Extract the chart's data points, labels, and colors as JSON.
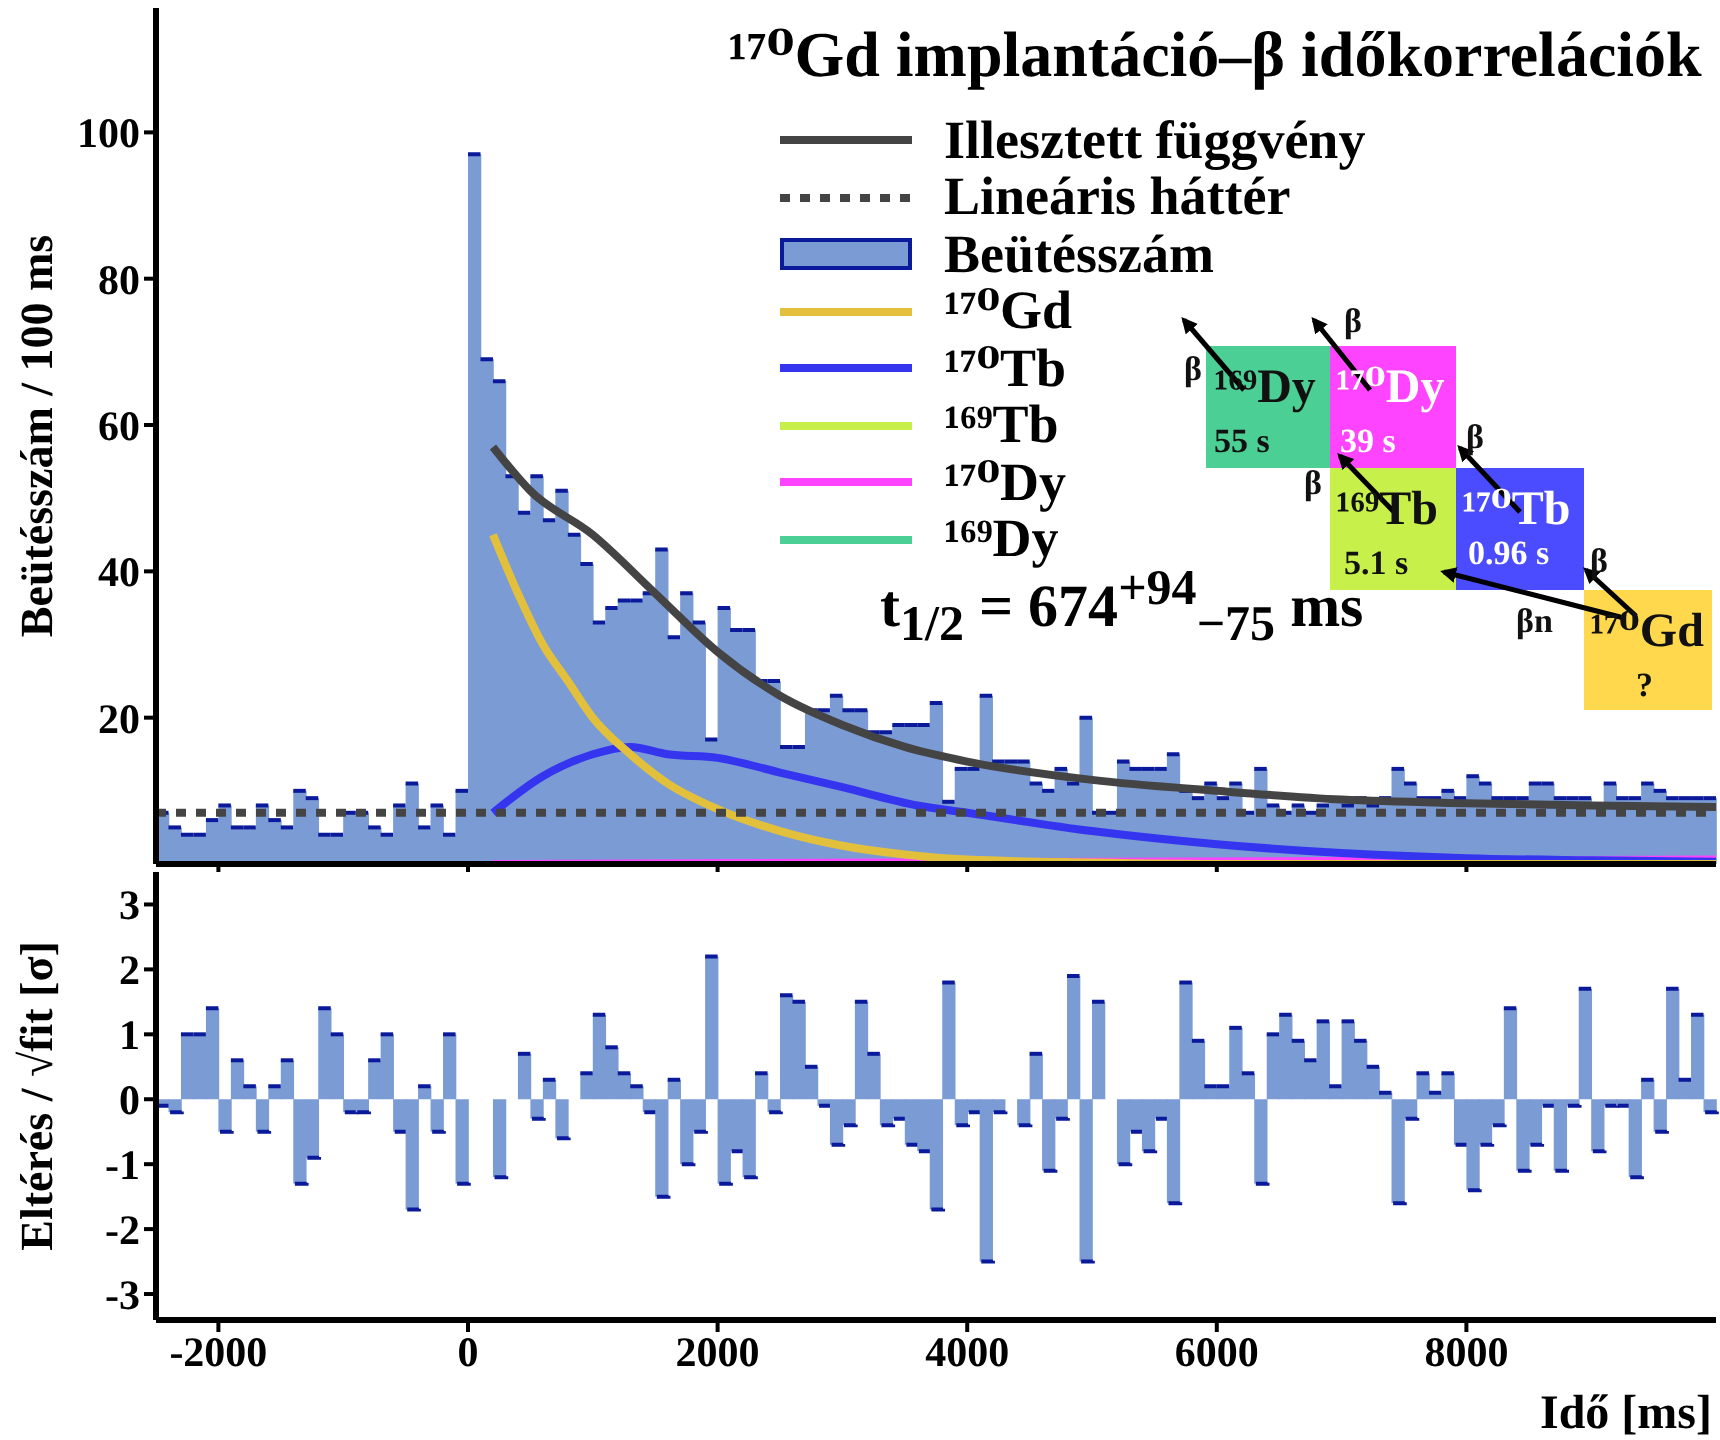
{
  "chart_data": [
    {
      "type": "histogram",
      "legend_title": "¹⁷⁰Gd implantáció–β időkorrelációk",
      "ylabel": "Beütésszám / 100 ms",
      "bins": [
        -2500,
        -2400,
        -2300,
        -2200,
        -2100,
        -2000,
        -1900,
        -1800,
        -1700,
        -1600,
        -1500,
        -1400,
        -1300,
        -1200,
        -1100,
        -1000,
        -900,
        -800,
        -700,
        -600,
        -500,
        -400,
        -300,
        -200,
        -100,
        0,
        100,
        200,
        300,
        400,
        500,
        600,
        700,
        800,
        900,
        1000,
        1100,
        1200,
        1300,
        1400,
        1500,
        1600,
        1700,
        1800,
        1900,
        2000,
        2100,
        2200,
        2300,
        2400,
        2500,
        2600,
        2700,
        2800,
        2900,
        3000,
        3100,
        3200,
        3300,
        3400,
        3500,
        3600,
        3700,
        3800,
        3900,
        4000,
        4100,
        4200,
        4300,
        4400,
        4500,
        4600,
        4700,
        4800,
        4900,
        5000,
        5100,
        5200,
        5300,
        5400,
        5500,
        5600,
        5700,
        5800,
        5900,
        6000,
        6100,
        6200,
        6300,
        6400,
        6500,
        6600,
        6700,
        6800,
        6900,
        7000,
        7100,
        7200,
        7300,
        7400,
        7500,
        7600,
        7700,
        7800,
        7900,
        8000,
        8100,
        8200,
        8300,
        8400,
        8500,
        8600,
        8700,
        8800,
        8900,
        9000,
        9100,
        9200,
        9300,
        9400,
        9500,
        9600,
        9700,
        9800,
        9900,
        10000
      ],
      "xlim": [
        -2500,
        10000
      ],
      "xticks": [
        -2000,
        0,
        2000,
        4000,
        6000,
        8000
      ],
      "ylim": [
        0,
        117
      ],
      "yticks": [
        20,
        40,
        60,
        80,
        100
      ],
      "tick_labels": "y",
      "legend": "top right",
      "grid": false,
      "series": [
        {
          "name": "Illesztett függvény",
          "type": "line",
          "color": "#444444",
          "x": [
            200,
            500,
            1000,
            1500,
            2000,
            2500,
            3000,
            3500,
            4000,
            5000,
            6000,
            7000,
            8000,
            9000,
            10000
          ],
          "values": [
            57,
            51,
            45,
            37,
            29,
            23,
            19,
            16,
            14,
            11.5,
            10,
            8.8,
            8.3,
            8,
            7.8
          ]
        },
        {
          "name": "Lineáris háttér",
          "type": "line",
          "color": "#444444",
          "line_style": "dotted",
          "x": [
            -2500,
            10000
          ],
          "values": [
            7,
            7
          ]
        },
        {
          "name": "Beütésszám",
          "type": "histogram",
          "color": "#7b9bd4",
          "values": [
            7,
            5,
            4,
            4,
            6,
            8,
            5,
            5,
            8,
            6,
            5,
            10,
            9,
            4,
            4,
            7,
            7,
            5,
            4,
            8,
            11,
            5,
            8,
            4,
            10,
            97,
            69,
            66,
            53,
            48,
            53,
            47,
            51,
            45,
            41,
            33,
            35,
            36,
            36,
            37,
            43,
            31,
            37,
            33,
            17,
            35,
            32,
            32,
            25,
            25,
            16,
            16,
            21,
            21,
            23,
            21,
            21,
            18,
            18,
            19,
            19,
            19,
            22,
            8.5,
            13,
            13,
            23,
            14,
            14,
            14,
            11,
            10,
            13,
            11,
            20,
            7,
            7,
            14,
            13,
            13,
            13,
            15,
            10,
            9,
            11,
            9,
            11,
            7,
            13,
            8,
            7,
            8,
            7,
            8,
            9,
            8,
            9,
            8,
            9,
            13,
            11,
            9,
            9,
            10,
            9,
            12,
            11,
            9,
            9,
            9,
            11,
            11,
            9,
            9,
            9,
            8,
            11,
            9,
            9,
            11,
            10,
            9,
            9,
            9,
            9
          ]
        },
        {
          "name": "¹⁷⁰Gd",
          "type": "line",
          "color": "#e3c03c",
          "x": [
            200,
            400,
            600,
            800,
            1000,
            1300,
            1600,
            2000,
            2500,
            3000,
            3500,
            4000,
            5000,
            6000,
            8000,
            10000
          ],
          "values": [
            45,
            37,
            30,
            25,
            20,
            15,
            11,
            7.5,
            4.5,
            2.5,
            1.3,
            0.6,
            0.2,
            0,
            0,
            0
          ]
        },
        {
          "name": "¹⁷⁰Tb",
          "type": "line",
          "color": "#3535f0",
          "x": [
            200,
            600,
            1000,
            1300,
            1600,
            2000,
            2500,
            3000,
            3600,
            4000,
            5000,
            6000,
            7000,
            8000,
            9000,
            10000
          ],
          "values": [
            7,
            12,
            15,
            16,
            15,
            14.5,
            12.5,
            10.5,
            8,
            7,
            4.5,
            2.7,
            1.5,
            0.8,
            0.5,
            0.3
          ]
        },
        {
          "name": "¹⁶⁹Tb",
          "type": "line",
          "color": "#c8f04a",
          "values": [
            null
          ]
        },
        {
          "name": "¹⁷⁰Dy",
          "type": "line",
          "color": "#ff44ff",
          "x": [
            200,
            10000
          ],
          "values": [
            0,
            0.6
          ]
        },
        {
          "name": "¹⁶⁹Dy",
          "type": "line",
          "color": "#4ccf94",
          "values": [
            null
          ]
        }
      ],
      "annotations": [
        "t$_{1/2}$ = 674$^{+94}$$_{−75}$ ms",
        "¹⁶⁹Dy",
        "55 s",
        "¹⁷⁰Dy",
        "39 s",
        "¹⁶⁹Tb",
        "5.1 s",
        "¹⁷⁰Tb",
        "0.96 s",
        "¹⁷⁰Gd",
        "?",
        "β",
        "β",
        "β",
        "β",
        "β",
        "βn"
      ]
    },
    {
      "type": "histogram",
      "xlabel": "Idő [ms]",
      "ylabel": "Eltérés / √fit [σ]",
      "bins": [
        -2500,
        -2400,
        -2300,
        -2200,
        -2100,
        -2000,
        -1900,
        -1800,
        -1700,
        -1600,
        -1500,
        -1400,
        -1300,
        -1200,
        -1100,
        -1000,
        -900,
        -800,
        -700,
        -600,
        -500,
        -400,
        -300,
        -200,
        -100,
        0,
        100,
        200,
        300,
        400,
        500,
        600,
        700,
        800,
        900,
        1000,
        1100,
        1200,
        1300,
        1400,
        1500,
        1600,
        1700,
        1800,
        1900,
        2000,
        2100,
        2200,
        2300,
        2400,
        2500,
        2600,
        2700,
        2800,
        2900,
        3000,
        3100,
        3200,
        3300,
        3400,
        3500,
        3600,
        3700,
        3800,
        3900,
        4000,
        4100,
        4200,
        4300,
        4400,
        4500,
        4600,
        4700,
        4800,
        4900,
        5000,
        5100,
        5200,
        5300,
        5400,
        5500,
        5600,
        5700,
        5800,
        5900,
        6000,
        6100,
        6200,
        6300,
        6400,
        6500,
        6600,
        6700,
        6800,
        6900,
        7000,
        7100,
        7200,
        7300,
        7400,
        7500,
        7600,
        7700,
        7800,
        7900,
        8000,
        8100,
        8200,
        8300,
        8400,
        8500,
        8600,
        8700,
        8800,
        8900,
        9000,
        9100,
        9200,
        9300,
        9400,
        9500,
        9600,
        9700,
        9800,
        9900,
        10000
      ],
      "values": [
        -0.1,
        -0.2,
        1.0,
        1.0,
        1.4,
        -0.5,
        0.6,
        0.2,
        -0.5,
        0.2,
        0.6,
        -1.3,
        -0.9,
        1.4,
        1.0,
        -0.2,
        -0.2,
        0.6,
        1.0,
        -0.5,
        -1.7,
        0.2,
        -0.5,
        1.0,
        -1.3,
        0,
        0,
        -1.2,
        0,
        0.7,
        -0.3,
        0.3,
        -0.6,
        0,
        0.4,
        1.3,
        0.8,
        0.4,
        0.2,
        -0.2,
        -1.5,
        0.3,
        -1.0,
        -0.5,
        2.2,
        -1.3,
        -0.8,
        -1.2,
        0.4,
        -0.2,
        1.6,
        1.5,
        0.5,
        -0.1,
        -0.7,
        -0.4,
        1.5,
        0.7,
        -0.4,
        -0.3,
        -0.7,
        -0.8,
        -1.7,
        1.8,
        -0.4,
        -0.2,
        -2.5,
        -0.2,
        0,
        -0.4,
        0.7,
        -1.1,
        -0.3,
        1.9,
        -2.5,
        1.5,
        0,
        -1.0,
        -0.5,
        -0.8,
        -0.3,
        -1.6,
        1.8,
        0.9,
        0.2,
        0.2,
        1.1,
        0.4,
        -1.3,
        1.0,
        1.3,
        0.9,
        0.6,
        1.2,
        0.2,
        1.2,
        0.9,
        0.5,
        0.1,
        -1.6,
        -0.3,
        0.4,
        0.1,
        0.4,
        -0.7,
        -1.4,
        -0.7,
        -0.4,
        1.4,
        -1.1,
        -0.7,
        -0.1,
        -1.1,
        -0.1,
        1.7,
        -0.8,
        -0.1,
        -0.1,
        -1.2,
        0.3,
        -0.5,
        1.7,
        0.3,
        1.3,
        -0.2
      ],
      "color": "#7b9bd4",
      "xlim": [
        -2500,
        10000
      ],
      "xticks": [
        -2000,
        0,
        2000,
        4000,
        6000,
        8000
      ],
      "ylim": [
        -3.4,
        3.5
      ],
      "yticks": [
        -3,
        -2,
        -1,
        0,
        1,
        2,
        3
      ],
      "grid": false
    }
  ]
}
